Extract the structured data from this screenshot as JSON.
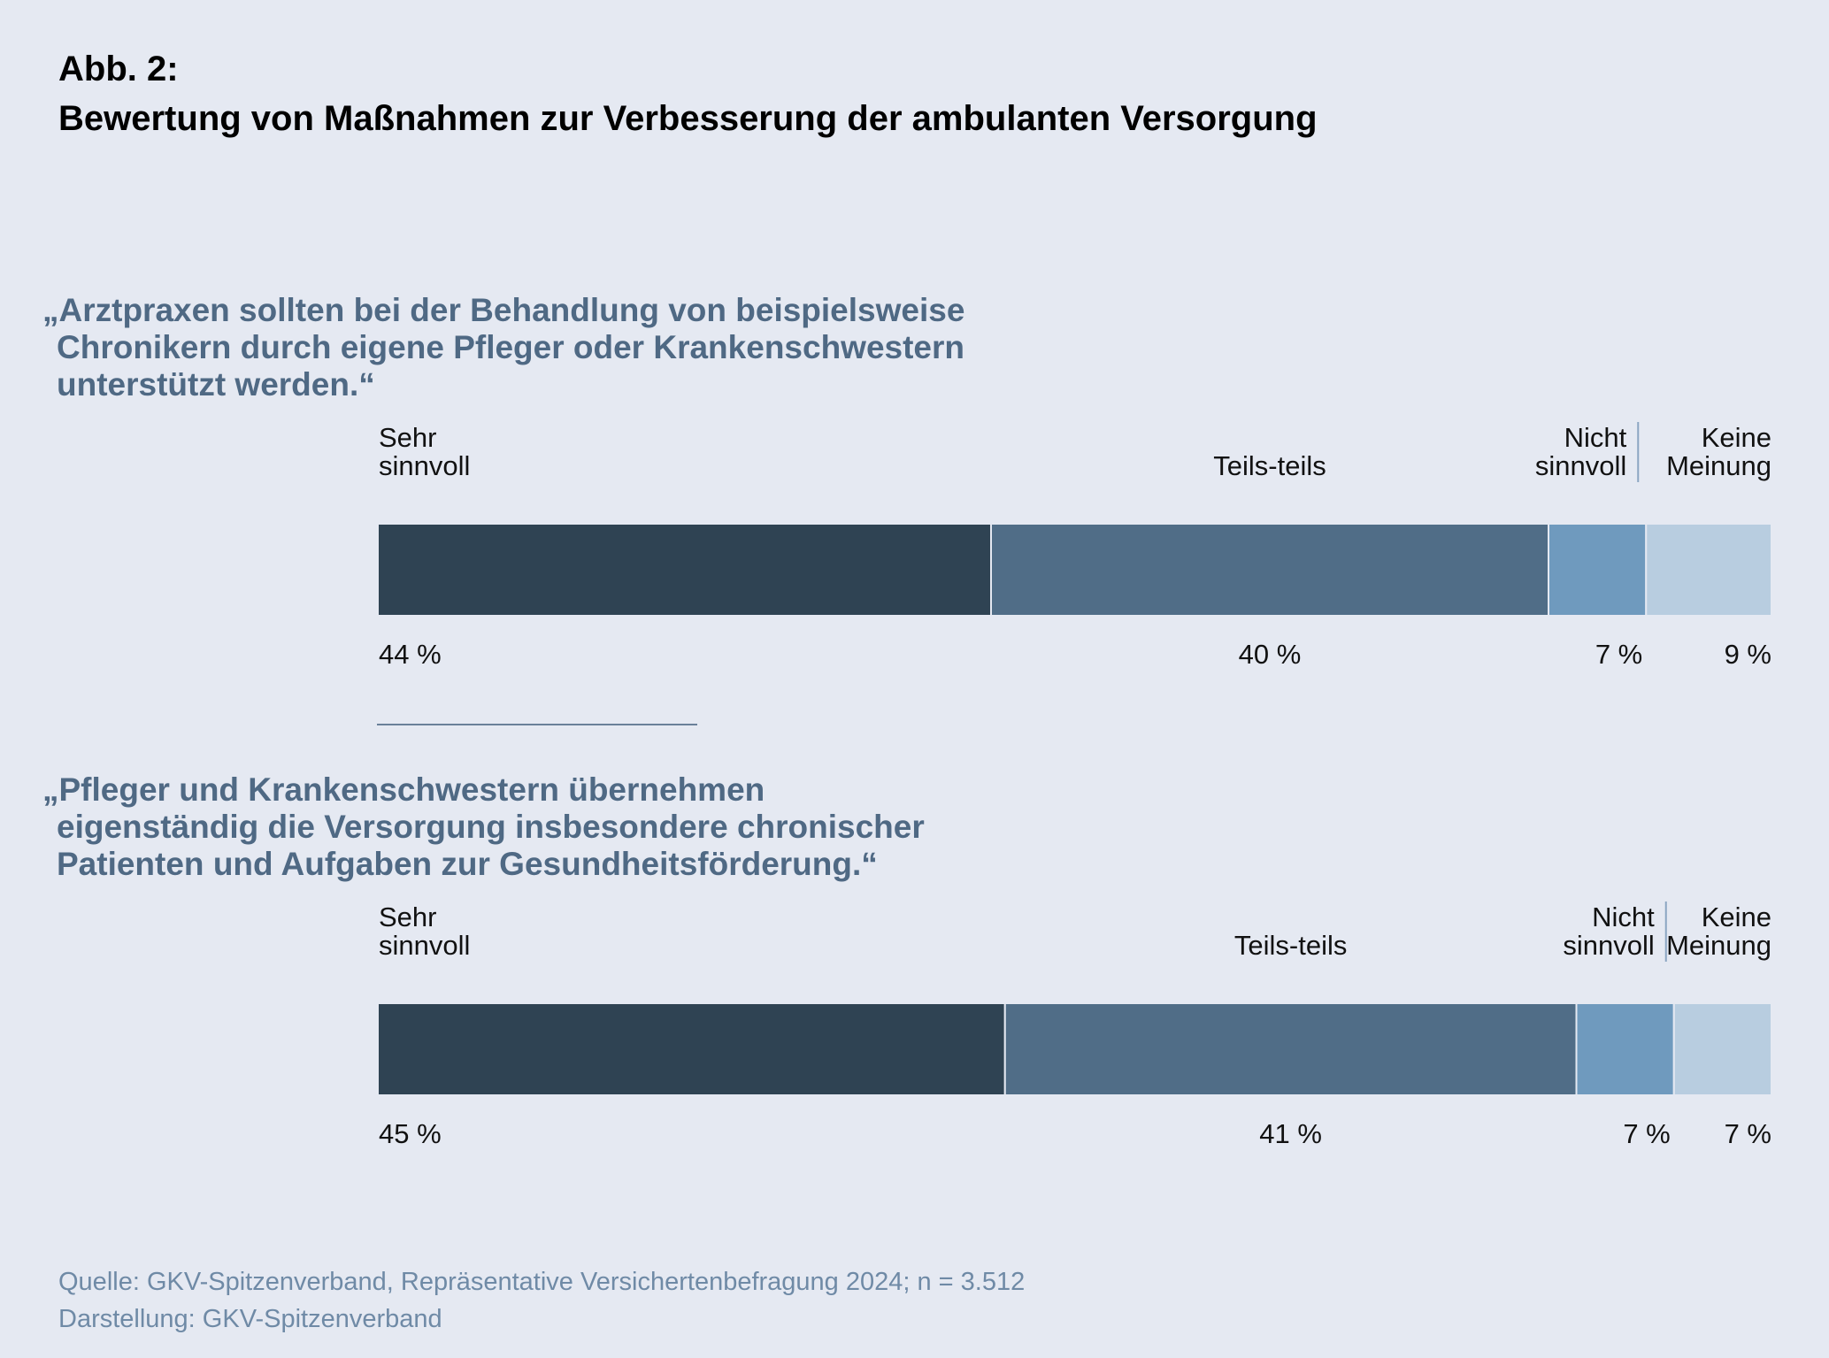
{
  "figure": {
    "label": "Abb. 2:",
    "title": "Bewertung von Maßnahmen zur Verbesserung der ambulanten Versorgung"
  },
  "chart_data": [
    {
      "type": "bar",
      "orientation": "horizontal-stacked-100",
      "statement_lines": [
        "„Arztpraxen sollten bei der Behandlung von beispielsweise",
        "Chronikern durch eigene Pfleger oder Krankenschwestern",
        "unterstützt werden.“"
      ],
      "categories": [
        {
          "label_lines": [
            "Sehr",
            "sinnvoll"
          ],
          "value": 44,
          "value_label": "44 %",
          "color": "#2f4353"
        },
        {
          "label_lines": [
            "Teils-teils"
          ],
          "value": 40,
          "value_label": "40 %",
          "color": "#506d87"
        },
        {
          "label_lines": [
            "Nicht",
            "sinnvoll"
          ],
          "value": 7,
          "value_label": "7 %",
          "color": "#6f9abe"
        },
        {
          "label_lines": [
            "Keine",
            "Meinung"
          ],
          "value": 9,
          "value_label": "9 %",
          "color": "#b8cde0"
        }
      ]
    },
    {
      "type": "bar",
      "orientation": "horizontal-stacked-100",
      "statement_lines": [
        "„Pfleger und Krankenschwestern übernehmen",
        "eigenständig die Versorgung insbesondere chronischer",
        "Patienten und Aufgaben zur Gesundheitsförderung.“"
      ],
      "categories": [
        {
          "label_lines": [
            "Sehr",
            "sinnvoll"
          ],
          "value": 45,
          "value_label": "45 %",
          "color": "#2f4353"
        },
        {
          "label_lines": [
            "Teils-teils"
          ],
          "value": 41,
          "value_label": "41 %",
          "color": "#506d87"
        },
        {
          "label_lines": [
            "Nicht",
            "sinnvoll"
          ],
          "value": 7,
          "value_label": "7 %",
          "color": "#6f9abe"
        },
        {
          "label_lines": [
            "Keine",
            "Meinung"
          ],
          "value": 7,
          "value_label": "7 %",
          "color": "#b8cde0"
        }
      ]
    }
  ],
  "source": {
    "line1": "Quelle: GKV-Spitzenverband, Repräsentative Versichertenbefragung 2024; n = 3.512",
    "line2": "Darstellung: GKV-Spitzenverband"
  }
}
